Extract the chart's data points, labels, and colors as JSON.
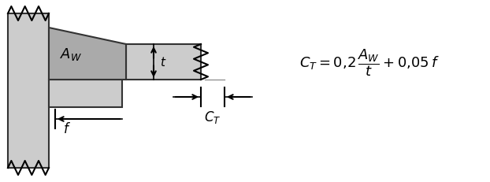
{
  "bg_color": "#ffffff",
  "light_gray": "#cccccc",
  "mid_gray": "#aaaaaa",
  "plate_edge": "#333333",
  "arrow_color": "#111111"
}
